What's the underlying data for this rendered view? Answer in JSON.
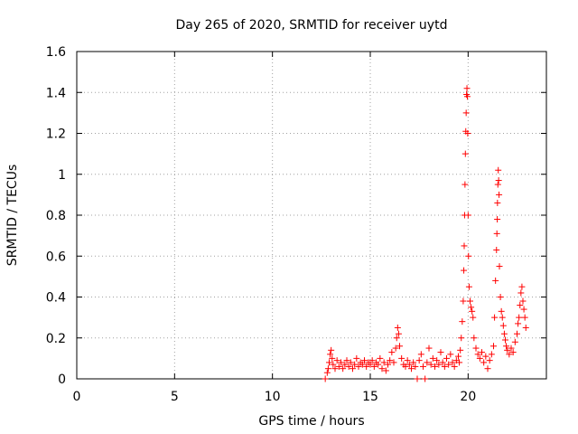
{
  "chart_data": {
    "type": "scatter",
    "title": "Day 265 of 2020, SRMTID for receiver uytd",
    "xlabel": "GPS time / hours",
    "ylabel": "SRMTID / TECUs",
    "xlim": [
      0,
      24
    ],
    "ylim": [
      0,
      1.6
    ],
    "x_ticks": [
      0,
      5,
      10,
      15,
      20
    ],
    "x_tick_labels": [
      "0",
      "5",
      "10",
      "15",
      "20"
    ],
    "y_ticks": [
      0,
      0.2,
      0.4,
      0.6,
      0.8,
      1.0,
      1.2,
      1.4,
      1.6
    ],
    "y_tick_labels": [
      "0",
      "0.2",
      "0.4",
      "0.6",
      "0.8",
      "1",
      "1.2",
      "1.4",
      "1.6"
    ],
    "grid": true,
    "marker": "+",
    "color": "#ff0000",
    "series": [
      {
        "name": "SRMTID",
        "points": [
          [
            12.7,
            0.0
          ],
          [
            12.8,
            0.03
          ],
          [
            12.85,
            0.05
          ],
          [
            12.9,
            0.08
          ],
          [
            12.95,
            0.12
          ],
          [
            13.0,
            0.14
          ],
          [
            13.05,
            0.1
          ],
          [
            13.1,
            0.07
          ],
          [
            13.2,
            0.05
          ],
          [
            13.3,
            0.09
          ],
          [
            13.4,
            0.06
          ],
          [
            13.5,
            0.08
          ],
          [
            13.6,
            0.05
          ],
          [
            13.7,
            0.07
          ],
          [
            13.8,
            0.09
          ],
          [
            13.9,
            0.06
          ],
          [
            14.0,
            0.08
          ],
          [
            14.1,
            0.05
          ],
          [
            14.2,
            0.07
          ],
          [
            14.3,
            0.1
          ],
          [
            14.4,
            0.06
          ],
          [
            14.5,
            0.08
          ],
          [
            14.6,
            0.07
          ],
          [
            14.7,
            0.09
          ],
          [
            14.8,
            0.06
          ],
          [
            14.9,
            0.08
          ],
          [
            15.0,
            0.07
          ],
          [
            15.1,
            0.09
          ],
          [
            15.2,
            0.06
          ],
          [
            15.3,
            0.08
          ],
          [
            15.4,
            0.07
          ],
          [
            15.5,
            0.1
          ],
          [
            15.6,
            0.05
          ],
          [
            15.7,
            0.08
          ],
          [
            15.8,
            0.04
          ],
          [
            15.9,
            0.07
          ],
          [
            16.0,
            0.09
          ],
          [
            16.1,
            0.13
          ],
          [
            16.2,
            0.08
          ],
          [
            16.3,
            0.15
          ],
          [
            16.35,
            0.2
          ],
          [
            16.4,
            0.25
          ],
          [
            16.45,
            0.22
          ],
          [
            16.5,
            0.16
          ],
          [
            16.6,
            0.1
          ],
          [
            16.7,
            0.07
          ],
          [
            16.8,
            0.06
          ],
          [
            16.9,
            0.09
          ],
          [
            17.0,
            0.07
          ],
          [
            17.1,
            0.05
          ],
          [
            17.2,
            0.08
          ],
          [
            17.3,
            0.06
          ],
          [
            17.4,
            0.0
          ],
          [
            17.5,
            0.09
          ],
          [
            17.6,
            0.12
          ],
          [
            17.7,
            0.06
          ],
          [
            17.8,
            0.0
          ],
          [
            17.9,
            0.08
          ],
          [
            18.0,
            0.15
          ],
          [
            18.1,
            0.07
          ],
          [
            18.2,
            0.1
          ],
          [
            18.3,
            0.06
          ],
          [
            18.4,
            0.09
          ],
          [
            18.5,
            0.07
          ],
          [
            18.6,
            0.13
          ],
          [
            18.7,
            0.08
          ],
          [
            18.8,
            0.06
          ],
          [
            18.9,
            0.1
          ],
          [
            19.0,
            0.07
          ],
          [
            19.1,
            0.12
          ],
          [
            19.2,
            0.08
          ],
          [
            19.3,
            0.06
          ],
          [
            19.4,
            0.09
          ],
          [
            19.5,
            0.11
          ],
          [
            19.55,
            0.08
          ],
          [
            19.6,
            0.14
          ],
          [
            19.65,
            0.2
          ],
          [
            19.7,
            0.28
          ],
          [
            19.75,
            0.38
          ],
          [
            19.78,
            0.53
          ],
          [
            19.8,
            0.65
          ],
          [
            19.82,
            0.8
          ],
          [
            19.84,
            0.95
          ],
          [
            19.86,
            1.1
          ],
          [
            19.88,
            1.21
          ],
          [
            19.9,
            1.3
          ],
          [
            19.92,
            1.39
          ],
          [
            19.94,
            1.42
          ],
          [
            19.96,
            1.38
          ],
          [
            19.98,
            1.2
          ],
          [
            20.0,
            0.8
          ],
          [
            20.02,
            0.6
          ],
          [
            20.05,
            0.45
          ],
          [
            20.1,
            0.38
          ],
          [
            20.15,
            0.35
          ],
          [
            20.2,
            0.33
          ],
          [
            20.25,
            0.3
          ],
          [
            20.3,
            0.2
          ],
          [
            20.4,
            0.15
          ],
          [
            20.5,
            0.12
          ],
          [
            20.6,
            0.1
          ],
          [
            20.7,
            0.13
          ],
          [
            20.8,
            0.08
          ],
          [
            20.9,
            0.11
          ],
          [
            21.0,
            0.05
          ],
          [
            21.1,
            0.09
          ],
          [
            21.2,
            0.12
          ],
          [
            21.3,
            0.16
          ],
          [
            21.35,
            0.3
          ],
          [
            21.4,
            0.48
          ],
          [
            21.45,
            0.63
          ],
          [
            21.47,
            0.71
          ],
          [
            21.49,
            0.78
          ],
          [
            21.5,
            0.86
          ],
          [
            21.52,
            0.95
          ],
          [
            21.54,
            1.02
          ],
          [
            21.56,
            0.97
          ],
          [
            21.58,
            0.9
          ],
          [
            21.6,
            0.55
          ],
          [
            21.65,
            0.4
          ],
          [
            21.7,
            0.33
          ],
          [
            21.75,
            0.3
          ],
          [
            21.8,
            0.26
          ],
          [
            21.85,
            0.22
          ],
          [
            21.9,
            0.19
          ],
          [
            21.95,
            0.16
          ],
          [
            22.0,
            0.14
          ],
          [
            22.1,
            0.12
          ],
          [
            22.2,
            0.15
          ],
          [
            22.3,
            0.13
          ],
          [
            22.4,
            0.18
          ],
          [
            22.5,
            0.22
          ],
          [
            22.55,
            0.27
          ],
          [
            22.6,
            0.3
          ],
          [
            22.65,
            0.36
          ],
          [
            22.7,
            0.42
          ],
          [
            22.75,
            0.45
          ],
          [
            22.8,
            0.38
          ],
          [
            22.85,
            0.34
          ],
          [
            22.9,
            0.3
          ],
          [
            22.95,
            0.25
          ]
        ]
      }
    ]
  }
}
